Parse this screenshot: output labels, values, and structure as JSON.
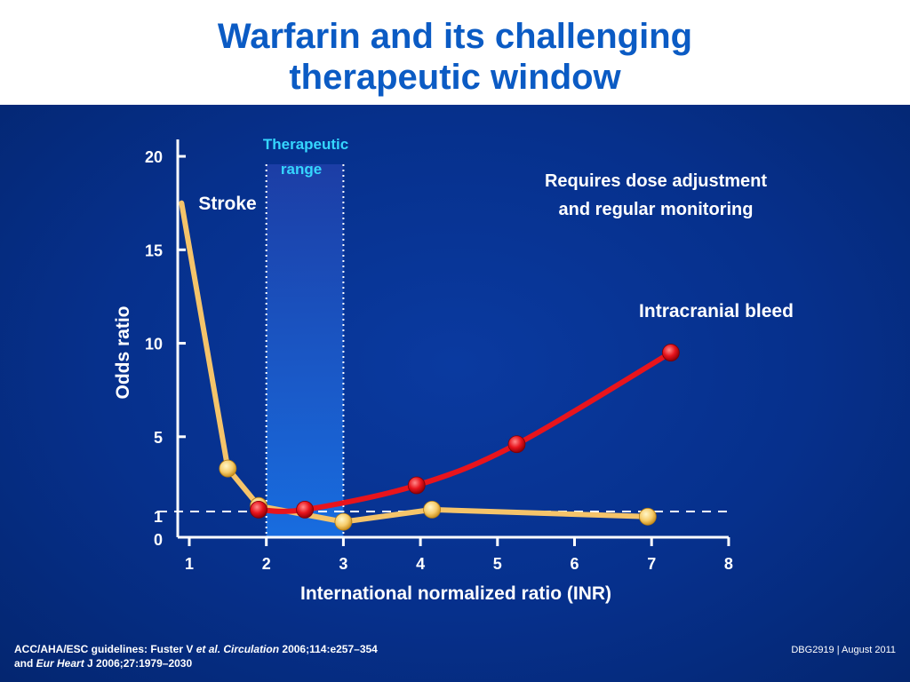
{
  "slide": {
    "title_line1": "Warfarin and its challenging",
    "title_line2": "therapeutic window",
    "footer_ref_line1_a": "ACC/AHA/ESC guidelines: Fuster V ",
    "footer_ref_line1_b": "et al. Circulation",
    "footer_ref_line1_c": " 2006;114:e257–354",
    "footer_ref_line2_a": "and ",
    "footer_ref_line2_b": "Eur Heart",
    "footer_ref_line2_c": " J 2006;27:1979–2030",
    "footer_code": "DBG2919  |  August 2011"
  },
  "colors": {
    "title": "#0b5bc4",
    "stroke_line": "#f5c46a",
    "bleed_line": "#e8141c",
    "therapeutic_label": "#35d6ff",
    "axis": "#ffffff"
  },
  "chart_data": {
    "type": "line",
    "xlabel": "International normalized ratio (INR)",
    "ylabel": "Odds ratio",
    "xlim": [
      1,
      8
    ],
    "ylim": [
      0,
      20
    ],
    "x_ticks": [
      "1",
      "2",
      "3",
      "4",
      "5",
      "6",
      "7",
      "8"
    ],
    "y_ticks": [
      "0",
      "1",
      "5",
      "10",
      "15",
      "20"
    ],
    "reference_line_y": 1,
    "therapeutic_range": {
      "label_line1": "Therapeutic",
      "label_line2": "range",
      "x_from": 2,
      "x_to": 3
    },
    "annotation": {
      "line1": "Requires dose adjustment",
      "line2": "and regular monitoring"
    },
    "series": [
      {
        "name": "Stroke",
        "line_start": {
          "x": 0.9,
          "y": 17.5
        },
        "points": [
          {
            "x": 1.5,
            "y": 3.3
          },
          {
            "x": 1.9,
            "y": 1.3
          },
          {
            "x": 3.0,
            "y": 0.6
          },
          {
            "x": 4.15,
            "y": 1.1
          },
          {
            "x": 6.95,
            "y": 0.8
          }
        ]
      },
      {
        "name": "Intracranial bleed",
        "points": [
          {
            "x": 1.9,
            "y": 1.1
          },
          {
            "x": 2.5,
            "y": 1.1
          },
          {
            "x": 3.95,
            "y": 2.4
          },
          {
            "x": 5.25,
            "y": 4.6
          },
          {
            "x": 7.25,
            "y": 9.5
          }
        ]
      }
    ]
  }
}
